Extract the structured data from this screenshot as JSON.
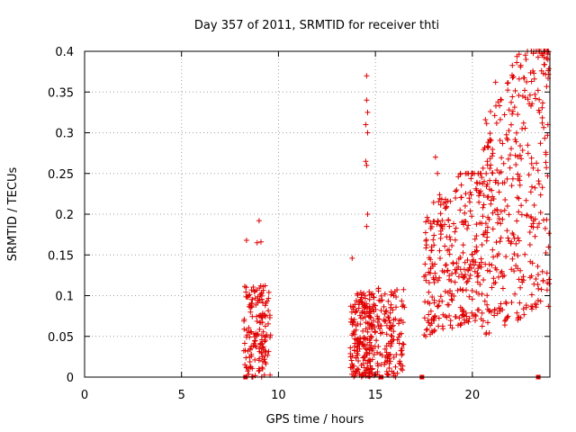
{
  "chart_data": {
    "type": "scatter",
    "title": "Day 357 of 2011, SRMTID for receiver thti",
    "xlabel": "GPS time / hours",
    "ylabel": "SRMTID / TECUs",
    "xlim": [
      0,
      24
    ],
    "ylim": [
      0,
      0.4
    ],
    "xticks": [
      0,
      5,
      10,
      15,
      20
    ],
    "yticks": [
      0,
      0.05,
      0.1,
      0.15,
      0.2,
      0.25,
      0.3,
      0.35,
      0.4
    ],
    "xtick_labels": [
      "0",
      "5",
      "10",
      "15",
      "20"
    ],
    "ytick_labels": [
      "0",
      "0.05",
      "0.1",
      "0.15",
      "0.2",
      "0.25",
      "0.3",
      "0.35",
      "0.4"
    ],
    "grid": true,
    "marker": "plus",
    "color": "#e00000",
    "baseline_markers_x": [
      8.3,
      15.3,
      17.4,
      23.4
    ],
    "clusters": [
      {
        "x_range": [
          8.2,
          9.6
        ],
        "y_range": [
          0.0,
          0.15
        ],
        "count": 160,
        "extra": [
          [
            9.0,
            0.192
          ],
          [
            9.1,
            0.166
          ],
          [
            8.35,
            0.168
          ],
          [
            8.9,
            0.165
          ]
        ]
      },
      {
        "x_range": [
          13.7,
          14.8
        ],
        "y_range": [
          0.0,
          0.14
        ],
        "count": 190,
        "extra": [
          [
            14.55,
            0.37
          ],
          [
            14.55,
            0.34
          ],
          [
            14.6,
            0.325
          ],
          [
            14.5,
            0.31
          ],
          [
            14.6,
            0.3
          ],
          [
            14.5,
            0.265
          ],
          [
            14.55,
            0.26
          ],
          [
            14.6,
            0.2
          ],
          [
            14.55,
            0.185
          ],
          [
            13.8,
            0.146
          ]
        ]
      },
      {
        "x_range": [
          14.8,
          16.5
        ],
        "y_range": [
          0.0,
          0.15
        ],
        "count": 160,
        "extra": []
      },
      {
        "x_range": [
          17.5,
          20.5
        ],
        "y_range": [
          0.05,
          0.25
        ],
        "count": 300,
        "extra": [
          [
            18.1,
            0.27
          ],
          [
            18.2,
            0.25
          ],
          [
            17.6,
            0.05
          ]
        ]
      },
      {
        "x_range": [
          20.5,
          24.0
        ],
        "y_range": [
          0.05,
          0.4
        ],
        "count": 380,
        "extra": [
          [
            23.6,
            0.395
          ],
          [
            23.9,
            0.39
          ],
          [
            21.2,
            0.362
          ],
          [
            22.7,
            0.352
          ]
        ]
      }
    ]
  }
}
